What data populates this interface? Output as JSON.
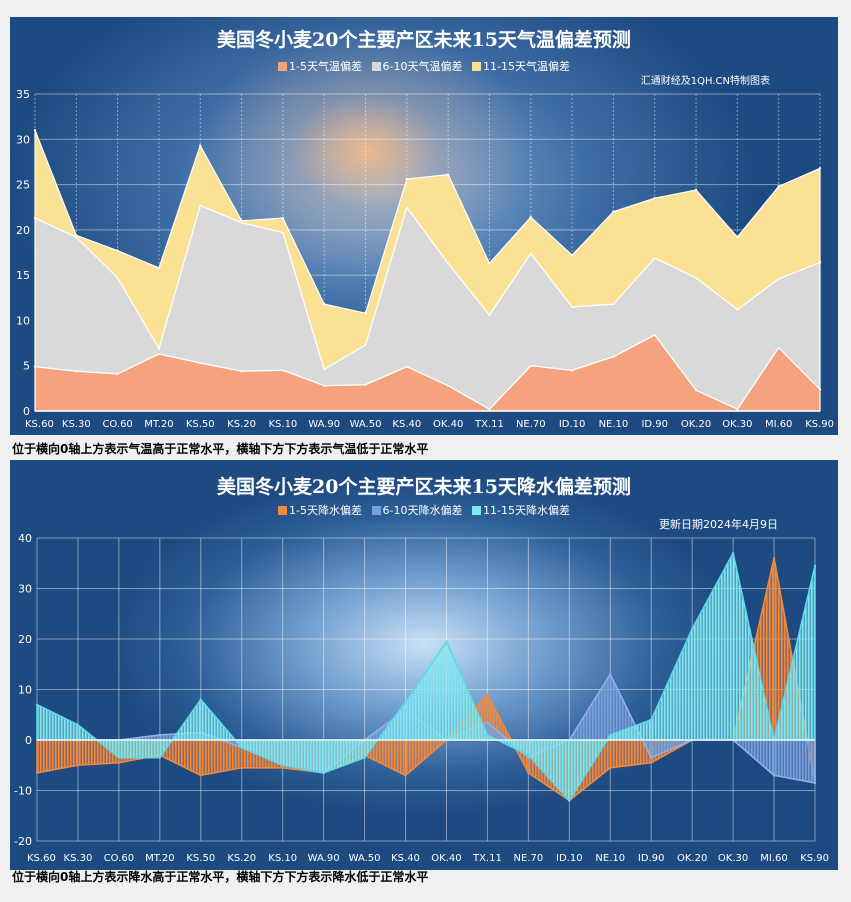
{
  "captions": {
    "top": "位于横向0轴上方表示气温高于正常水平，横轴下方下方表示气温低于正常水平",
    "bottom": "位于横向0轴上方表示降水高于正常水平，横轴下方下方表示降水低于正常水平"
  },
  "chart_data": [
    {
      "type": "area",
      "stacked": true,
      "title": "美国冬小麦20个主要产区未来15天气温偏差预测",
      "note": "汇通财经及1QH.CN特制图表",
      "categories": [
        "KS.60",
        "KS.30",
        "CO.60",
        "MT.20",
        "KS.50",
        "KS.20",
        "KS.10",
        "WA.90",
        "WA.50",
        "KS.40",
        "OK.40",
        "TX.11",
        "NE.70",
        "ID.10",
        "NE.10",
        "ID.90",
        "OK.20",
        "OK.30",
        "MI.60",
        "KS.90"
      ],
      "ylim": [
        0,
        35
      ],
      "yticks": [
        0,
        5,
        10,
        15,
        20,
        25,
        30,
        35
      ],
      "grid": true,
      "legend_position": "top",
      "series": [
        {
          "name": "1-5天气温偏差",
          "color": "#f4a37e",
          "values": [
            4.9,
            4.4,
            4.1,
            6.3,
            5.3,
            4.4,
            4.5,
            2.8,
            2.9,
            4.9,
            2.8,
            0.2,
            5.0,
            4.5,
            6.0,
            8.4,
            2.3,
            0.2,
            7.0,
            2.4
          ]
        },
        {
          "name": "6-10天气温偏差",
          "color": "#d9d9d9",
          "values": [
            16.4,
            14.8,
            10.6,
            0.6,
            17.4,
            16.4,
            15.2,
            1.8,
            4.4,
            17.6,
            13.5,
            10.4,
            12.4,
            7.0,
            5.8,
            8.5,
            12.4,
            11.0,
            7.6,
            14.0
          ]
        },
        {
          "name": "11-15天气温偏差",
          "color": "#fbe193",
          "values": [
            9.7,
            0.2,
            3.0,
            8.9,
            6.6,
            0.2,
            1.6,
            7.2,
            3.5,
            3.1,
            9.8,
            5.7,
            4.0,
            5.7,
            10.2,
            6.6,
            9.7,
            8.0,
            10.2,
            10.4
          ]
        }
      ]
    },
    {
      "type": "area",
      "stacked": false,
      "title": "美国冬小麦20个主要产区未来15天降水偏差预测",
      "note": "更新日期2024年4月9日",
      "categories": [
        "KS.60",
        "KS.30",
        "CO.60",
        "MT.20",
        "KS.50",
        "KS.20",
        "KS.10",
        "WA.90",
        "WA.50",
        "KS.40",
        "OK.40",
        "TX.11",
        "NE.70",
        "ID.10",
        "NE.10",
        "ID.90",
        "OK.20",
        "OK.30",
        "MI.60",
        "KS.90"
      ],
      "ylim": [
        -20,
        40
      ],
      "yticks": [
        -20,
        -10,
        0,
        10,
        20,
        30,
        40
      ],
      "grid": true,
      "legend_position": "top",
      "series": [
        {
          "name": "1-5天降水偏差",
          "color": "#f0883e",
          "values": [
            -6.5,
            -5.0,
            -4.5,
            -3.0,
            -7.0,
            -5.5,
            -5.5,
            -6.5,
            -3.0,
            -7.0,
            0,
            9.0,
            -6.5,
            -12.0,
            -5.5,
            -4.5,
            0,
            0,
            36.0,
            -8.5
          ]
        },
        {
          "name": "6-10天降水偏差",
          "color": "#7aa0dc",
          "values": [
            0,
            0,
            0,
            1.0,
            1.5,
            -1.5,
            -5.0,
            -6.5,
            0,
            6.0,
            0,
            3.5,
            -3.5,
            0,
            13.0,
            -3.5,
            0,
            0,
            -7.0,
            -8.5
          ]
        },
        {
          "name": "11-15天降水偏差",
          "color": "#82e6ee",
          "values": [
            7.0,
            3.0,
            -3.5,
            -3.5,
            8.0,
            -1.5,
            -5.0,
            -6.5,
            -3.5,
            7.5,
            19.5,
            1.0,
            -3.0,
            -12.0,
            1.0,
            4.0,
            22.0,
            37.0,
            0,
            34.5
          ]
        }
      ]
    }
  ]
}
